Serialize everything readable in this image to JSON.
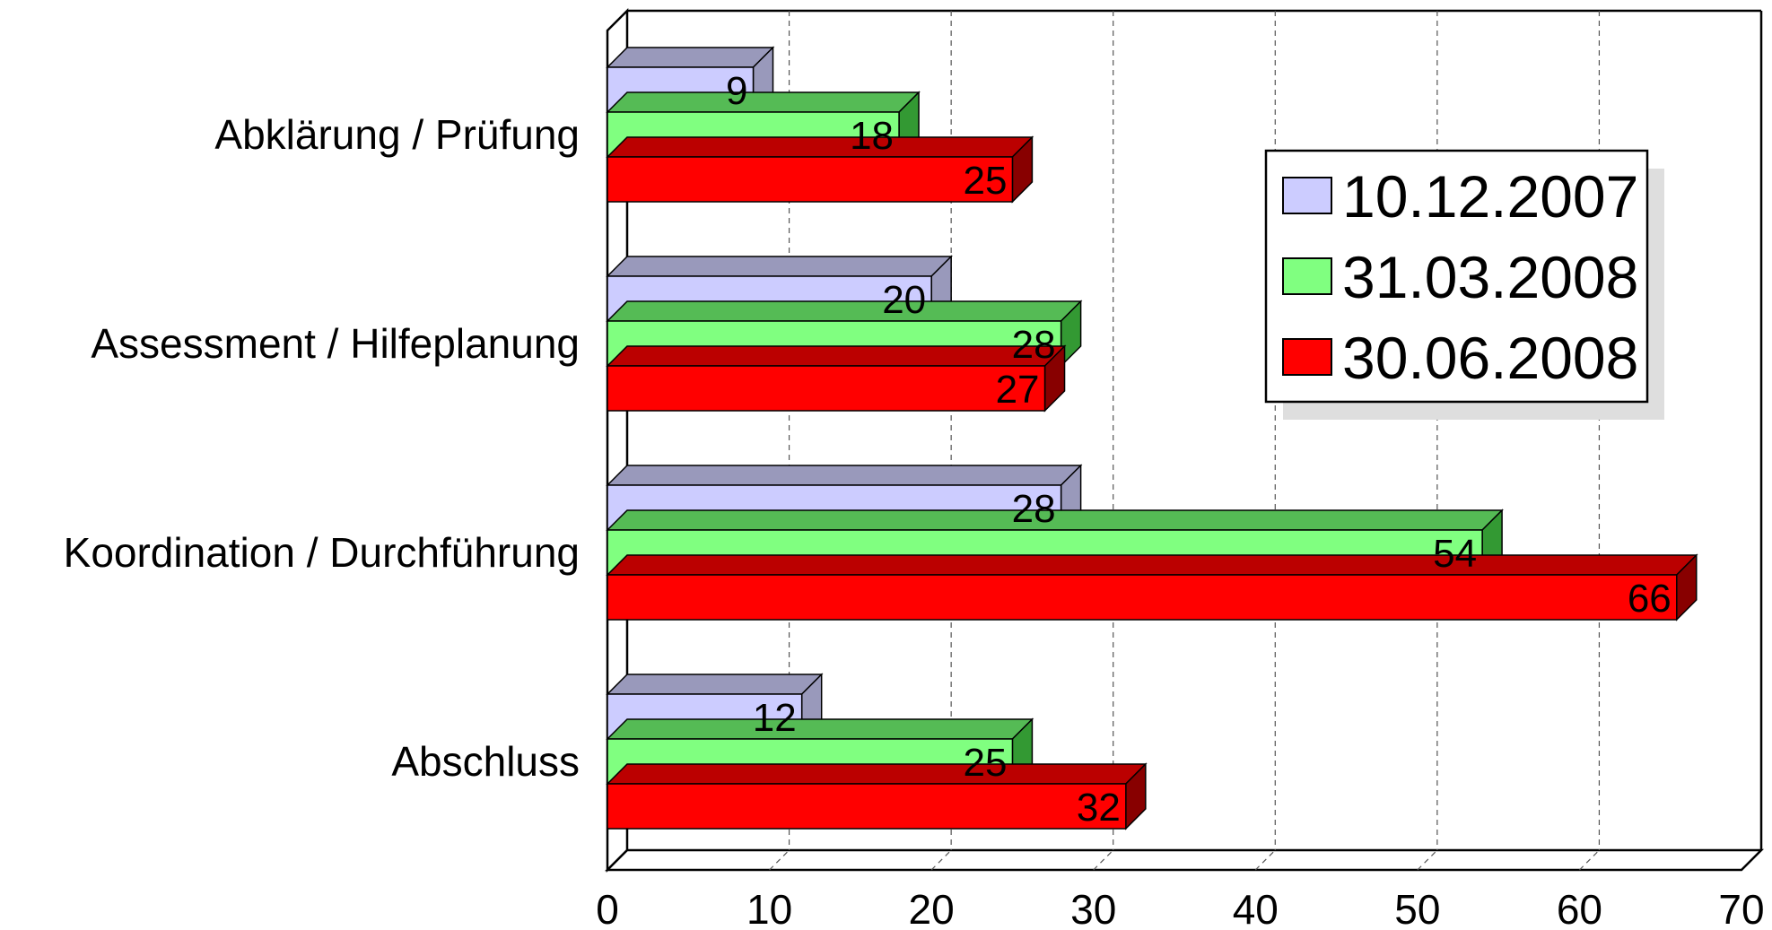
{
  "chart_data": {
    "type": "bar",
    "orientation": "horizontal",
    "style": "3d",
    "categories": [
      "Abklärung / Prüfung",
      "Assessment / Hilfeplanung",
      "Koordination / Durchführung",
      "Abschluss"
    ],
    "series": [
      {
        "name": "10.12.2007",
        "values": [
          9,
          20,
          28,
          12
        ],
        "color": "#ccccff",
        "side_color": "#9999bb",
        "top_color": "#9999bb"
      },
      {
        "name": "31.03.2008",
        "values": [
          18,
          28,
          54,
          25
        ],
        "color": "#80ff80",
        "side_color": "#339933",
        "top_color": "#55bb55"
      },
      {
        "name": "30.06.2008",
        "values": [
          25,
          27,
          66,
          32
        ],
        "color": "#ff0000",
        "side_color": "#880000",
        "top_color": "#bb0000"
      }
    ],
    "x_ticks": [
      "0",
      "10",
      "20",
      "30",
      "40",
      "50",
      "60",
      "70"
    ],
    "xlim": [
      0,
      70
    ],
    "grid": "vertical dashed",
    "legend": {
      "placement": "right",
      "items": [
        "10.12.2007",
        "31.03.2008",
        "30.06.2008"
      ]
    }
  }
}
